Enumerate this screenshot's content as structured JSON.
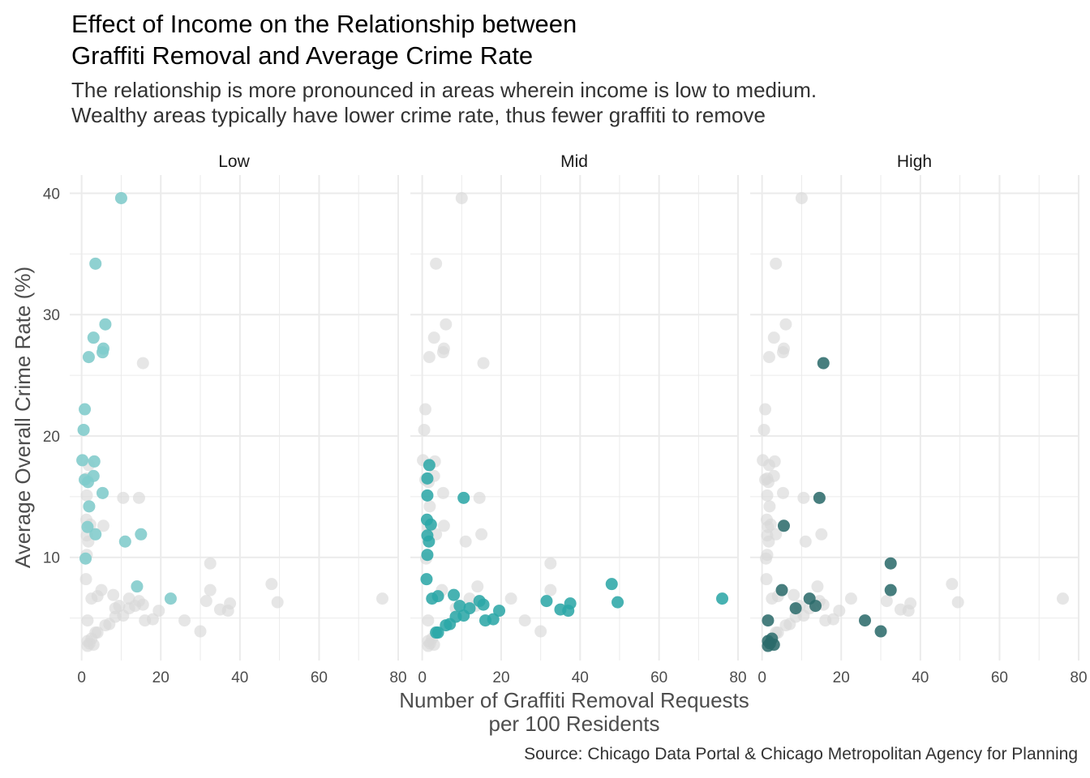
{
  "title_line1": "Effect of Income on the Relationship between",
  "title_line2": "Graffiti Removal and Average Crime Rate",
  "subtitle_line1": "The relationship is more pronounced in areas wherein income is low to medium.",
  "subtitle_line2": "Wealthy areas typically have lower crime rate, thus fewer graffiti to remove",
  "caption": "Source: Chicago Data Portal & Chicago Metropolitan Agency for Planning",
  "colors": {
    "background_points": "#d9d9d9",
    "low": "#7fcdcd",
    "mid": "#2aa8a8",
    "high": "#2a6b6b",
    "grid": "#ebebeb"
  },
  "chart_data": {
    "type": "scatter",
    "facets": [
      "Low",
      "Mid",
      "High"
    ],
    "xlabel_line1": "Number of Graffiti Removal Requests",
    "xlabel_line2": "per 100 Residents",
    "ylabel": "Average Overall Crime Rate (%)",
    "xlim": [
      -3,
      80
    ],
    "ylim": [
      1.5,
      41.5
    ],
    "x_ticks": [
      0,
      20,
      40,
      60,
      80
    ],
    "y_ticks": [
      10,
      20,
      30,
      40
    ],
    "grid": true,
    "series": [
      {
        "name": "Low",
        "points": [
          [
            10,
            39.6
          ],
          [
            3.5,
            34.2
          ],
          [
            6,
            29.2
          ],
          [
            3,
            28.1
          ],
          [
            5.5,
            27.2
          ],
          [
            5.3,
            26.9
          ],
          [
            1.8,
            26.5
          ],
          [
            0.8,
            22.2
          ],
          [
            0.5,
            20.5
          ],
          [
            0.2,
            18
          ],
          [
            3.2,
            17.9
          ],
          [
            3,
            16.7
          ],
          [
            0.8,
            16.4
          ],
          [
            1.6,
            16.2
          ],
          [
            5.3,
            15.3
          ],
          [
            1.9,
            14.2
          ],
          [
            1.5,
            12.5
          ],
          [
            3.5,
            11.9
          ],
          [
            15,
            11.9
          ],
          [
            11,
            11.3
          ],
          [
            1,
            9.9
          ],
          [
            14,
            7.6
          ],
          [
            22.5,
            6.6
          ]
        ]
      },
      {
        "name": "Mid",
        "points": [
          [
            1.8,
            17.6
          ],
          [
            1.3,
            16.5
          ],
          [
            1.3,
            15.1
          ],
          [
            10.5,
            14.9
          ],
          [
            1.2,
            13.1
          ],
          [
            2.2,
            12.7
          ],
          [
            1.3,
            11.8
          ],
          [
            1.7,
            11.3
          ],
          [
            1.3,
            10.2
          ],
          [
            1.1,
            8.2
          ],
          [
            2.5,
            6.6
          ],
          [
            4,
            6.8
          ],
          [
            8,
            6.9
          ],
          [
            14.5,
            6.4
          ],
          [
            9.5,
            6
          ],
          [
            12,
            5.8
          ],
          [
            15.5,
            6.1
          ],
          [
            31.5,
            6.4
          ],
          [
            37.5,
            6.2
          ],
          [
            48,
            7.8
          ],
          [
            49.5,
            6.3
          ],
          [
            76,
            6.6
          ],
          [
            35,
            5.7
          ],
          [
            37,
            5.6
          ],
          [
            19.5,
            5.6
          ],
          [
            10.5,
            5.2
          ],
          [
            8.5,
            5.1
          ],
          [
            16,
            4.8
          ],
          [
            18,
            4.9
          ],
          [
            6,
            4.4
          ],
          [
            7,
            4.5
          ],
          [
            4,
            3.8
          ],
          [
            3.5,
            3.8
          ]
        ]
      },
      {
        "name": "High",
        "points": [
          [
            15.5,
            26
          ],
          [
            14.5,
            14.9
          ],
          [
            5.5,
            12.6
          ],
          [
            32.5,
            9.5
          ],
          [
            5,
            7.3
          ],
          [
            32.5,
            7.3
          ],
          [
            12,
            6.6
          ],
          [
            13.5,
            6
          ],
          [
            8.5,
            5.8
          ],
          [
            26,
            4.8
          ],
          [
            1.5,
            4.8
          ],
          [
            30,
            3.9
          ],
          [
            2.5,
            3.3
          ],
          [
            1.5,
            3.1
          ],
          [
            2,
            2.9
          ],
          [
            3,
            2.8
          ],
          [
            1.5,
            2.7
          ]
        ]
      }
    ],
    "background_points": [
      [
        10,
        39.6
      ],
      [
        3.5,
        34.2
      ],
      [
        6,
        29.2
      ],
      [
        3,
        28.1
      ],
      [
        5.5,
        27.2
      ],
      [
        5.3,
        26.9
      ],
      [
        1.8,
        26.5
      ],
      [
        15.5,
        26
      ],
      [
        0.8,
        22.2
      ],
      [
        0.5,
        20.5
      ],
      [
        0.2,
        18
      ],
      [
        3.2,
        17.9
      ],
      [
        1.8,
        17.6
      ],
      [
        3,
        16.7
      ],
      [
        0.8,
        16.4
      ],
      [
        1.6,
        16.2
      ],
      [
        1.3,
        16.5
      ],
      [
        5.3,
        15.3
      ],
      [
        1.3,
        15.1
      ],
      [
        10.5,
        14.9
      ],
      [
        14.5,
        14.9
      ],
      [
        1.9,
        14.2
      ],
      [
        1.2,
        13.1
      ],
      [
        2.2,
        12.7
      ],
      [
        5.5,
        12.6
      ],
      [
        1.5,
        12.5
      ],
      [
        3.5,
        11.9
      ],
      [
        15,
        11.9
      ],
      [
        1.3,
        11.8
      ],
      [
        1.7,
        11.3
      ],
      [
        11,
        11.3
      ],
      [
        1.3,
        10.2
      ],
      [
        1,
        9.9
      ],
      [
        32.5,
        9.5
      ],
      [
        1.1,
        8.2
      ],
      [
        48,
        7.8
      ],
      [
        14,
        7.6
      ],
      [
        5,
        7.3
      ],
      [
        32.5,
        7.3
      ],
      [
        8,
        6.9
      ],
      [
        4,
        6.8
      ],
      [
        2.5,
        6.6
      ],
      [
        12,
        6.6
      ],
      [
        22.5,
        6.6
      ],
      [
        76,
        6.6
      ],
      [
        14.5,
        6.4
      ],
      [
        31.5,
        6.4
      ],
      [
        49.5,
        6.3
      ],
      [
        37.5,
        6.2
      ],
      [
        15.5,
        6.1
      ],
      [
        9.5,
        6
      ],
      [
        13.5,
        6
      ],
      [
        12,
        5.8
      ],
      [
        8.5,
        5.8
      ],
      [
        35,
        5.7
      ],
      [
        37,
        5.6
      ],
      [
        19.5,
        5.6
      ],
      [
        10.5,
        5.2
      ],
      [
        8.5,
        5.1
      ],
      [
        18,
        4.9
      ],
      [
        16,
        4.8
      ],
      [
        26,
        4.8
      ],
      [
        1.5,
        4.8
      ],
      [
        7,
        4.5
      ],
      [
        6,
        4.4
      ],
      [
        4,
        3.8
      ],
      [
        3.5,
        3.8
      ],
      [
        30,
        3.9
      ],
      [
        2.5,
        3.3
      ],
      [
        1.5,
        3.1
      ],
      [
        2,
        2.9
      ],
      [
        3,
        2.8
      ],
      [
        1.5,
        2.7
      ]
    ]
  }
}
